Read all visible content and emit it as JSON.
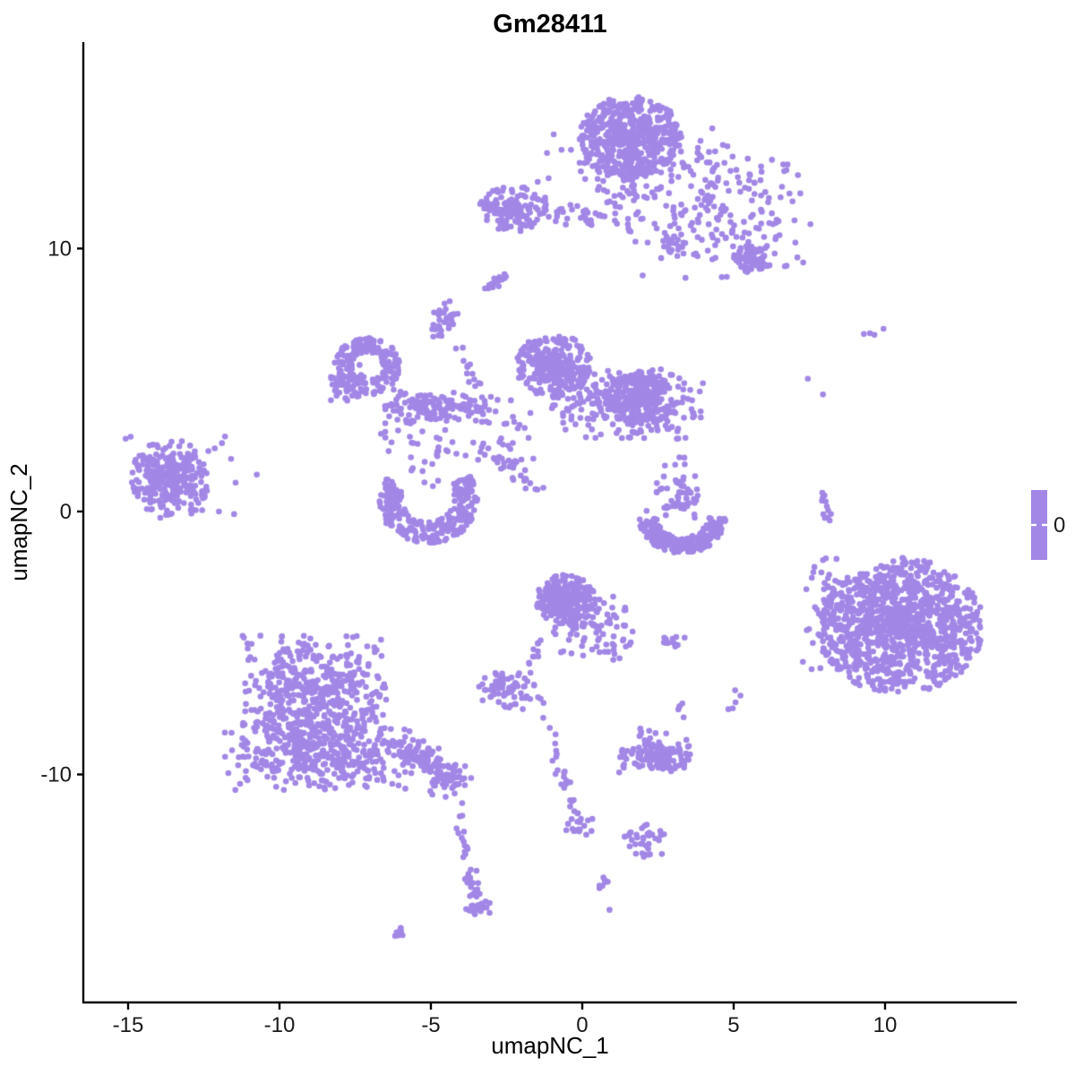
{
  "header": {
    "title": "Gm28411"
  },
  "chart_data": {
    "type": "scatter",
    "title": "Gm28411",
    "xlabel": "umapNC_1",
    "ylabel": "umapNC_2",
    "x_ticks": [
      -15,
      -10,
      -5,
      0,
      5,
      10
    ],
    "y_ticks": [
      -10,
      0,
      10
    ],
    "xlim": [
      -16.45,
      14.35
    ],
    "ylim": [
      -18.67,
      17.85
    ],
    "grid": false,
    "point_color": "#A287E6",
    "point_radius_px": 3.3,
    "axis_color": "#000000",
    "background": "#FFFFFF",
    "legend": {
      "label": "0",
      "bar_color": "#A287E6",
      "position": "right"
    },
    "clusters": [
      {
        "name": "top-main",
        "kind": "disc",
        "cx": 1.6,
        "cy": 14.25,
        "rx": 1.7,
        "ry": 1.55,
        "bias": 0.8,
        "n": 520
      },
      {
        "name": "top-main-skirt",
        "kind": "blob",
        "cx": 1.8,
        "cy": 13.0,
        "sx": 1.7,
        "sy": 1.0,
        "clip": 2.0,
        "n": 90
      },
      {
        "name": "top-tail",
        "kind": "bridge",
        "x1": 1.4,
        "y1": 13.1,
        "x2": 1.1,
        "y2": 10.7,
        "w": 0.4,
        "n": 30
      },
      {
        "name": "top-left",
        "kind": "disc",
        "cx": -2.25,
        "cy": 11.55,
        "rx": 1.15,
        "ry": 0.9,
        "bias": 0.85,
        "n": 150
      },
      {
        "name": "top-left-arm",
        "kind": "bridge",
        "x1": -1.3,
        "y1": 11.35,
        "x2": 0.8,
        "y2": 11.1,
        "w": 0.2,
        "n": 28
      },
      {
        "name": "top-right-fan",
        "kind": "blob",
        "cx": 4.6,
        "cy": 11.4,
        "sx": 1.55,
        "sy": 1.3,
        "clip": 2.0,
        "n": 190
      },
      {
        "name": "top-right-knot",
        "kind": "disc",
        "cx": 5.55,
        "cy": 9.6,
        "rx": 0.55,
        "ry": 0.55,
        "bias": 0.7,
        "n": 80
      },
      {
        "name": "top-small-pair",
        "kind": "blob",
        "cx": 3.0,
        "cy": 10.1,
        "sx": 0.3,
        "sy": 0.25,
        "clip": 1.8,
        "n": 18
      },
      {
        "name": "comma-streak",
        "kind": "bridge",
        "x1": -3.05,
        "y1": 8.45,
        "x2": -2.55,
        "y2": 9.0,
        "w": 0.1,
        "n": 16
      },
      {
        "name": "small-knob",
        "kind": "blob",
        "cx": -4.55,
        "cy": 7.3,
        "sx": 0.3,
        "sy": 0.42,
        "clip": 1.8,
        "n": 34
      },
      {
        "name": "knob-chain",
        "kind": "bridge",
        "x1": -4.3,
        "y1": 6.6,
        "x2": -3.45,
        "y2": 4.7,
        "w": 0.13,
        "n": 13
      },
      {
        "name": "left-ring",
        "kind": "ring",
        "cx": -7.1,
        "cy": 5.5,
        "r0": 0.5,
        "r1": 1.1,
        "a0": 0,
        "a1": 360,
        "n": 175
      },
      {
        "name": "left-ring-bump",
        "kind": "blob",
        "cx": -7.85,
        "cy": 5.0,
        "sx": 0.38,
        "sy": 0.45,
        "clip": 1.8,
        "n": 40
      },
      {
        "name": "ring-bridge",
        "kind": "bridge",
        "x1": -6.05,
        "y1": 4.15,
        "x2": -3.2,
        "y2": 3.85,
        "w": 0.3,
        "n": 55
      },
      {
        "name": "ring-east-scatter",
        "kind": "blob",
        "cx": -5.9,
        "cy": 3.2,
        "sx": 0.55,
        "sy": 0.9,
        "clip": 1.8,
        "n": 22
      },
      {
        "name": "mid-band",
        "kind": "blob",
        "cx": -4.9,
        "cy": 3.95,
        "sx": 1.0,
        "sy": 0.3,
        "clip": 1.9,
        "n": 70
      },
      {
        "name": "junction-scatter",
        "kind": "blob",
        "cx": -2.7,
        "cy": 2.6,
        "sx": 0.75,
        "sy": 1.0,
        "clip": 1.9,
        "n": 40
      },
      {
        "name": "center-main",
        "kind": "disc",
        "cx": -0.95,
        "cy": 5.55,
        "rx": 1.25,
        "ry": 1.2,
        "bias": 0.8,
        "n": 300
      },
      {
        "name": "center-band",
        "kind": "blob",
        "cx": 1.48,
        "cy": 4.12,
        "sx": 1.5,
        "sy": 0.8,
        "clip": 1.7,
        "n": 260
      },
      {
        "name": "center-right",
        "kind": "disc",
        "cx": 1.92,
        "cy": 4.29,
        "rx": 1.05,
        "ry": 1.1,
        "bias": 0.85,
        "n": 220
      },
      {
        "name": "center-trail",
        "kind": "bridge",
        "x1": -2.45,
        "y1": 1.95,
        "x2": -1.5,
        "y2": 0.75,
        "w": 0.15,
        "n": 18
      },
      {
        "name": "mid-right-trail",
        "kind": "blob",
        "cx": 2.9,
        "cy": 1.5,
        "sx": 0.45,
        "sy": 1.1,
        "clip": 1.9,
        "n": 22
      },
      {
        "name": "crescent-cap",
        "kind": "blob",
        "cx": 3.3,
        "cy": 0.65,
        "sx": 0.3,
        "sy": 0.45,
        "clip": 1.8,
        "n": 38
      },
      {
        "name": "right-crescent",
        "kind": "ring",
        "cx": 3.3,
        "cy": -0.15,
        "r0": 0.85,
        "r1": 1.45,
        "a0": 185,
        "a1": 355,
        "n": 230
      },
      {
        "name": "left-horseshoe",
        "kind": "ring",
        "cx": -5.1,
        "cy": 0.45,
        "r0": 0.85,
        "r1": 1.65,
        "a0": 150,
        "a1": 395,
        "n": 260
      },
      {
        "name": "horseshoe-scatter",
        "kind": "blob",
        "cx": -4.6,
        "cy": 2.2,
        "sx": 0.75,
        "sy": 0.7,
        "clip": 1.8,
        "n": 26
      },
      {
        "name": "far-left",
        "kind": "disc",
        "cx": -13.6,
        "cy": 1.3,
        "rx": 1.3,
        "ry": 1.45,
        "bias": 0.75,
        "n": 240
      },
      {
        "name": "far-left-core",
        "kind": "blob",
        "cx": -13.6,
        "cy": 1.3,
        "sx": 1.0,
        "sy": 1.1,
        "clip": 1.5,
        "n": 60
      },
      {
        "name": "far-left-satellites",
        "kind": "dots",
        "pts": [
          [
            -11.9,
            2.6
          ],
          [
            -11.6,
            2.0
          ],
          [
            -11.45,
            1.1
          ],
          [
            -12.0,
            0.0
          ],
          [
            -10.75,
            1.4
          ],
          [
            -11.8,
            2.85
          ],
          [
            -12.35,
            2.3
          ],
          [
            -11.5,
            -0.1
          ]
        ]
      },
      {
        "name": "bottom-left-main",
        "kind": "blob",
        "cx": -8.85,
        "cy": -7.35,
        "sx": 1.4,
        "sy": 1.55,
        "clip": 1.7,
        "n": 580
      },
      {
        "name": "bottom-left-base",
        "kind": "blob",
        "cx": -8.75,
        "cy": -9.25,
        "sx": 1.75,
        "sy": 0.75,
        "clip": 1.8,
        "n": 260
      },
      {
        "name": "bl-tail",
        "kind": "bridge",
        "x1": -6.35,
        "y1": -8.8,
        "x2": -4.5,
        "y2": -9.95,
        "w": 0.33,
        "n": 90
      },
      {
        "name": "bl-tail-knot",
        "kind": "blob",
        "cx": -4.35,
        "cy": -10.3,
        "sx": 0.4,
        "sy": 0.45,
        "clip": 1.8,
        "n": 55
      },
      {
        "name": "bl-chain-upper",
        "kind": "bridge",
        "x1": -4.2,
        "y1": -11.3,
        "x2": -3.75,
        "y2": -13.2,
        "w": 0.12,
        "n": 13
      },
      {
        "name": "bl-chain-lower",
        "kind": "bridge",
        "x1": -3.8,
        "y1": -13.5,
        "x2": -3.3,
        "y2": -15.15,
        "w": 0.12,
        "n": 22
      },
      {
        "name": "bl-chain-end",
        "kind": "blob",
        "cx": -3.45,
        "cy": -15.0,
        "sx": 0.22,
        "sy": 0.28,
        "clip": 1.8,
        "n": 20
      },
      {
        "name": "lone-dash",
        "kind": "bridge",
        "x1": -6.2,
        "y1": -16.2,
        "x2": -5.9,
        "y2": -15.9,
        "w": 0.07,
        "n": 8
      },
      {
        "name": "bottom-center-main",
        "kind": "disc",
        "cx": -0.55,
        "cy": -3.35,
        "rx": 1.0,
        "ry": 0.95,
        "bias": 0.8,
        "n": 270
      },
      {
        "name": "bottom-center-fringe",
        "kind": "blob",
        "cx": 0.35,
        "cy": -4.4,
        "sx": 0.8,
        "sy": 0.75,
        "clip": 1.8,
        "n": 90
      },
      {
        "name": "bc-chain-a",
        "kind": "bridge",
        "x1": -1.25,
        "y1": -4.7,
        "x2": -1.85,
        "y2": -6.1,
        "w": 0.1,
        "n": 10
      },
      {
        "name": "bc-sparse",
        "kind": "bridge",
        "x1": -1.55,
        "y1": -6.6,
        "x2": -0.9,
        "y2": -8.9,
        "w": 0.18,
        "n": 8
      },
      {
        "name": "bc-chain-b",
        "kind": "bridge",
        "x1": -0.85,
        "y1": -9.2,
        "x2": -0.2,
        "y2": -11.6,
        "w": 0.14,
        "n": 20
      },
      {
        "name": "bc-chain-end",
        "kind": "blob",
        "cx": -0.1,
        "cy": -11.95,
        "sx": 0.3,
        "sy": 0.25,
        "clip": 1.8,
        "n": 18
      },
      {
        "name": "small-left-knot",
        "kind": "blob",
        "cx": -2.5,
        "cy": -6.8,
        "sx": 0.55,
        "sy": 0.4,
        "clip": 1.9,
        "n": 70
      },
      {
        "name": "mid-pair",
        "kind": "bridge",
        "x1": 2.55,
        "y1": -4.9,
        "x2": 3.3,
        "y2": -5.05,
        "w": 0.13,
        "n": 12
      },
      {
        "name": "small-vpair",
        "kind": "blob",
        "cx": 3.3,
        "cy": -7.45,
        "sx": 0.12,
        "sy": 0.22,
        "clip": 1.8,
        "n": 5
      },
      {
        "name": "small-rpair",
        "kind": "blob",
        "cx": 5.0,
        "cy": -7.25,
        "sx": 0.14,
        "sy": 0.26,
        "clip": 1.8,
        "n": 5
      },
      {
        "name": "bottom-mid",
        "kind": "blob",
        "cx": 2.4,
        "cy": -9.3,
        "sx": 0.7,
        "sy": 0.38,
        "clip": 1.7,
        "n": 125
      },
      {
        "name": "bottom-mid-cap",
        "kind": "blob",
        "cx": 2.2,
        "cy": -8.45,
        "sx": 0.33,
        "sy": 0.28,
        "clip": 1.8,
        "n": 10
      },
      {
        "name": "low-small",
        "kind": "blob",
        "cx": 1.95,
        "cy": -12.55,
        "sx": 0.45,
        "sy": 0.38,
        "clip": 1.7,
        "n": 35
      },
      {
        "name": "low-comma",
        "kind": "bridge",
        "x1": 0.5,
        "y1": -14.3,
        "x2": 0.85,
        "y2": -13.95,
        "w": 0.09,
        "n": 8
      },
      {
        "name": "right-main",
        "kind": "disc",
        "cx": 10.5,
        "cy": -4.35,
        "rx": 2.75,
        "ry": 2.6,
        "bias": 0.85,
        "n": 1150
      },
      {
        "name": "right-fringe",
        "kind": "blob",
        "cx": 8.35,
        "cy": -3.9,
        "sx": 0.6,
        "sy": 1.2,
        "clip": 1.8,
        "n": 70
      },
      {
        "name": "right-chain",
        "kind": "bridge",
        "x1": 7.7,
        "y1": 0.95,
        "x2": 8.3,
        "y2": -0.6,
        "w": 0.11,
        "n": 12
      },
      {
        "name": "stray-dots",
        "kind": "dots",
        "pts": [
          [
            9.3,
            6.75
          ],
          [
            9.5,
            6.78
          ],
          [
            9.65,
            6.72
          ],
          [
            9.95,
            6.95
          ],
          [
            7.45,
            5.05
          ],
          [
            7.95,
            4.45
          ],
          [
            7.95,
            -1.85
          ],
          [
            1.6,
            -12.2
          ],
          [
            0.9,
            -15.15
          ]
        ]
      }
    ]
  }
}
